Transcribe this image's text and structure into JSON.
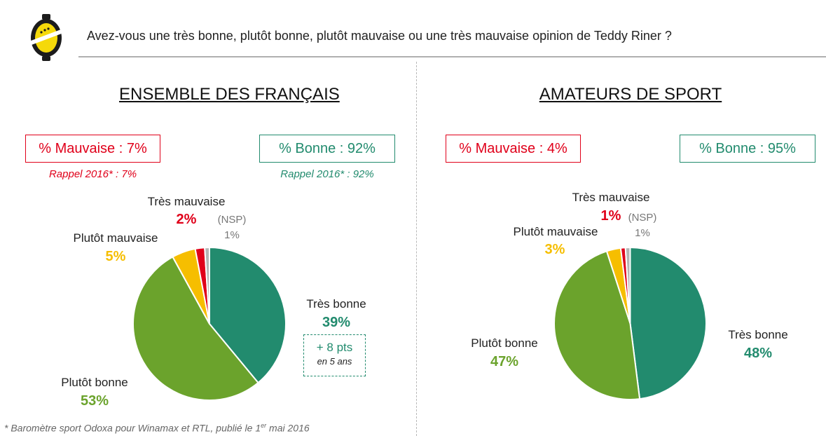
{
  "question": "Avez-vous une très bonne, plutôt bonne, plutôt mauvaise ou une très mauvaise opinion de Teddy Riner ?",
  "colors": {
    "tres_bonne": "#228b6e",
    "plutot_bonne": "#6ba32c",
    "plutot_mauvaise": "#f6be00",
    "tres_mauvaise": "#e0001a",
    "nsp": "#b5b5b5"
  },
  "panels": [
    {
      "title": "ENSEMBLE DES FRANÇAIS",
      "mauvaise_box": "% Mauvaise : 7%",
      "bonne_box": "% Bonne : 92%",
      "rappel_mauvaise": "Rappel 2016* : 7%",
      "rappel_bonne": "Rappel 2016* : 92%",
      "labels": {
        "tres_bonne": "Très bonne",
        "tres_bonne_value": "39%",
        "plutot_bonne": "Plutôt bonne",
        "plutot_bonne_value": "53%",
        "plutot_mauvaise": "Plutôt mauvaise",
        "plutot_mauvaise_value": "5%",
        "tres_mauvaise": "Très mauvaise",
        "tres_mauvaise_value": "2%",
        "nsp": "(NSP)",
        "nsp_value": "1%"
      },
      "evolution": {
        "value": "+ 8 pts",
        "period": "en 5 ans"
      }
    },
    {
      "title": "AMATEURS DE SPORT",
      "mauvaise_box": "% Mauvaise : 4%",
      "bonne_box": "% Bonne : 95%",
      "labels": {
        "tres_bonne": "Très bonne",
        "tres_bonne_value": "48%",
        "plutot_bonne": "Plutôt bonne",
        "plutot_bonne_value": "47%",
        "plutot_mauvaise": "Plutôt mauvaise",
        "plutot_mauvaise_value": "3%",
        "tres_mauvaise": "Très mauvaise",
        "tres_mauvaise_value": "1%",
        "nsp": "(NSP)",
        "nsp_value": "1%"
      }
    }
  ],
  "footnote": {
    "before": "* Baromètre sport Odoxa pour Winamax et RTL, publié le 1",
    "sup": "er",
    "after": " mai 2016"
  },
  "chart_data": [
    {
      "type": "pie",
      "title": "ENSEMBLE DES FRANÇAIS",
      "categories": [
        "Très bonne",
        "Plutôt bonne",
        "Plutôt mauvaise",
        "Très mauvaise",
        "(NSP)"
      ],
      "values": [
        39,
        53,
        5,
        2,
        1
      ],
      "unit": "%"
    },
    {
      "type": "pie",
      "title": "AMATEURS DE SPORT",
      "categories": [
        "Très bonne",
        "Plutôt bonne",
        "Plutôt mauvaise",
        "Très mauvaise",
        "(NSP)"
      ],
      "values": [
        48,
        47,
        3,
        1,
        1
      ],
      "unit": "%"
    }
  ]
}
